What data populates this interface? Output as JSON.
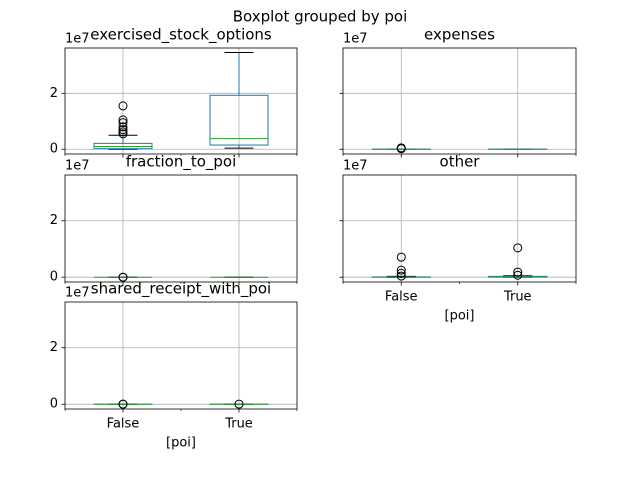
{
  "title": "Boxplot grouped by poi",
  "chart_data": [
    {
      "type": "box",
      "title": "exercised_stock_options",
      "offset_label": "1e7",
      "ylim": [
        -0.17,
        3.62
      ],
      "yticks": [
        0,
        2
      ],
      "grid": true,
      "show_yticklabels": true,
      "box_color": "#1f77b4",
      "median_color": "#2ca02c",
      "boxes": [
        {
          "whislo": 0,
          "q1": 0.02,
          "med": 0.1,
          "q3": 0.21,
          "whishi": 0.5,
          "fliers": [
            0.55,
            0.62,
            0.7,
            0.8,
            0.95,
            1.05,
            1.55
          ]
        },
        {
          "whislo": 0.04,
          "q1": 0.15,
          "med": 0.38,
          "q3": 1.93,
          "whishi": 3.46,
          "fliers": []
        }
      ]
    },
    {
      "type": "box",
      "title": "expenses",
      "offset_label": "1e7",
      "ylim": [
        -0.17,
        3.62
      ],
      "yticks": [
        0,
        2
      ],
      "grid": true,
      "show_yticklabels": false,
      "box_color": "#1f77b4",
      "median_color": "#2ca02c",
      "boxes": [
        {
          "whislo": 0,
          "q1": 0,
          "med": 0.002,
          "q3": 0.005,
          "whishi": 0.01,
          "fliers": [
            0.02,
            0.03,
            0.05
          ]
        },
        {
          "whislo": 0,
          "q1": 0.001,
          "med": 0.002,
          "q3": 0.004,
          "whishi": 0.008,
          "fliers": []
        }
      ]
    },
    {
      "type": "box",
      "title": "fraction_to_poi",
      "offset_label": "1e7",
      "ylim": [
        -0.17,
        3.62
      ],
      "yticks": [
        0,
        2
      ],
      "grid": true,
      "show_yticklabels": true,
      "box_color": "#1f77b4",
      "median_color": "#2ca02c",
      "boxes": [
        {
          "whislo": 0,
          "q1": 0,
          "med": 0,
          "q3": 0,
          "whishi": 0,
          "fliers": [
            0,
            0
          ]
        },
        {
          "whislo": 0,
          "q1": 0,
          "med": 0,
          "q3": 0,
          "whishi": 0,
          "fliers": []
        }
      ]
    },
    {
      "type": "box",
      "title": "other",
      "offset_label": "1e7",
      "ylim": [
        -0.17,
        3.62
      ],
      "yticks": [
        0,
        2
      ],
      "grid": true,
      "show_yticklabels": false,
      "box_color": "#1f77b4",
      "median_color": "#2ca02c",
      "xlabel": "[poi]",
      "categories": [
        "False",
        "True"
      ],
      "boxes": [
        {
          "whislo": 0,
          "q1": 0,
          "med": 0.002,
          "q3": 0.01,
          "whishi": 0.03,
          "fliers": [
            0.04,
            0.14,
            0.25,
            0.71
          ]
        },
        {
          "whislo": 0,
          "q1": 0.002,
          "med": 0.01,
          "q3": 0.03,
          "whishi": 0.05,
          "fliers": [
            0.07,
            0.18,
            1.04
          ]
        }
      ]
    },
    {
      "type": "box",
      "title": "shared_receipt_with_poi",
      "offset_label": "1e7",
      "ylim": [
        -0.17,
        3.62
      ],
      "yticks": [
        0,
        2
      ],
      "grid": true,
      "show_yticklabels": true,
      "box_color": "#1f77b4",
      "median_color": "#2ca02c",
      "xlabel": "[poi]",
      "categories": [
        "False",
        "True"
      ],
      "boxes": [
        {
          "whislo": 0,
          "q1": 0,
          "med": 0.0001,
          "q3": 0.0002,
          "whishi": 0.0005,
          "fliers": [
            0.0006,
            0.0008
          ]
        },
        {
          "whislo": 0,
          "q1": 0.0001,
          "med": 0.0001,
          "q3": 0.0002,
          "whishi": 0.0005,
          "fliers": [
            0.0006
          ]
        }
      ]
    }
  ]
}
